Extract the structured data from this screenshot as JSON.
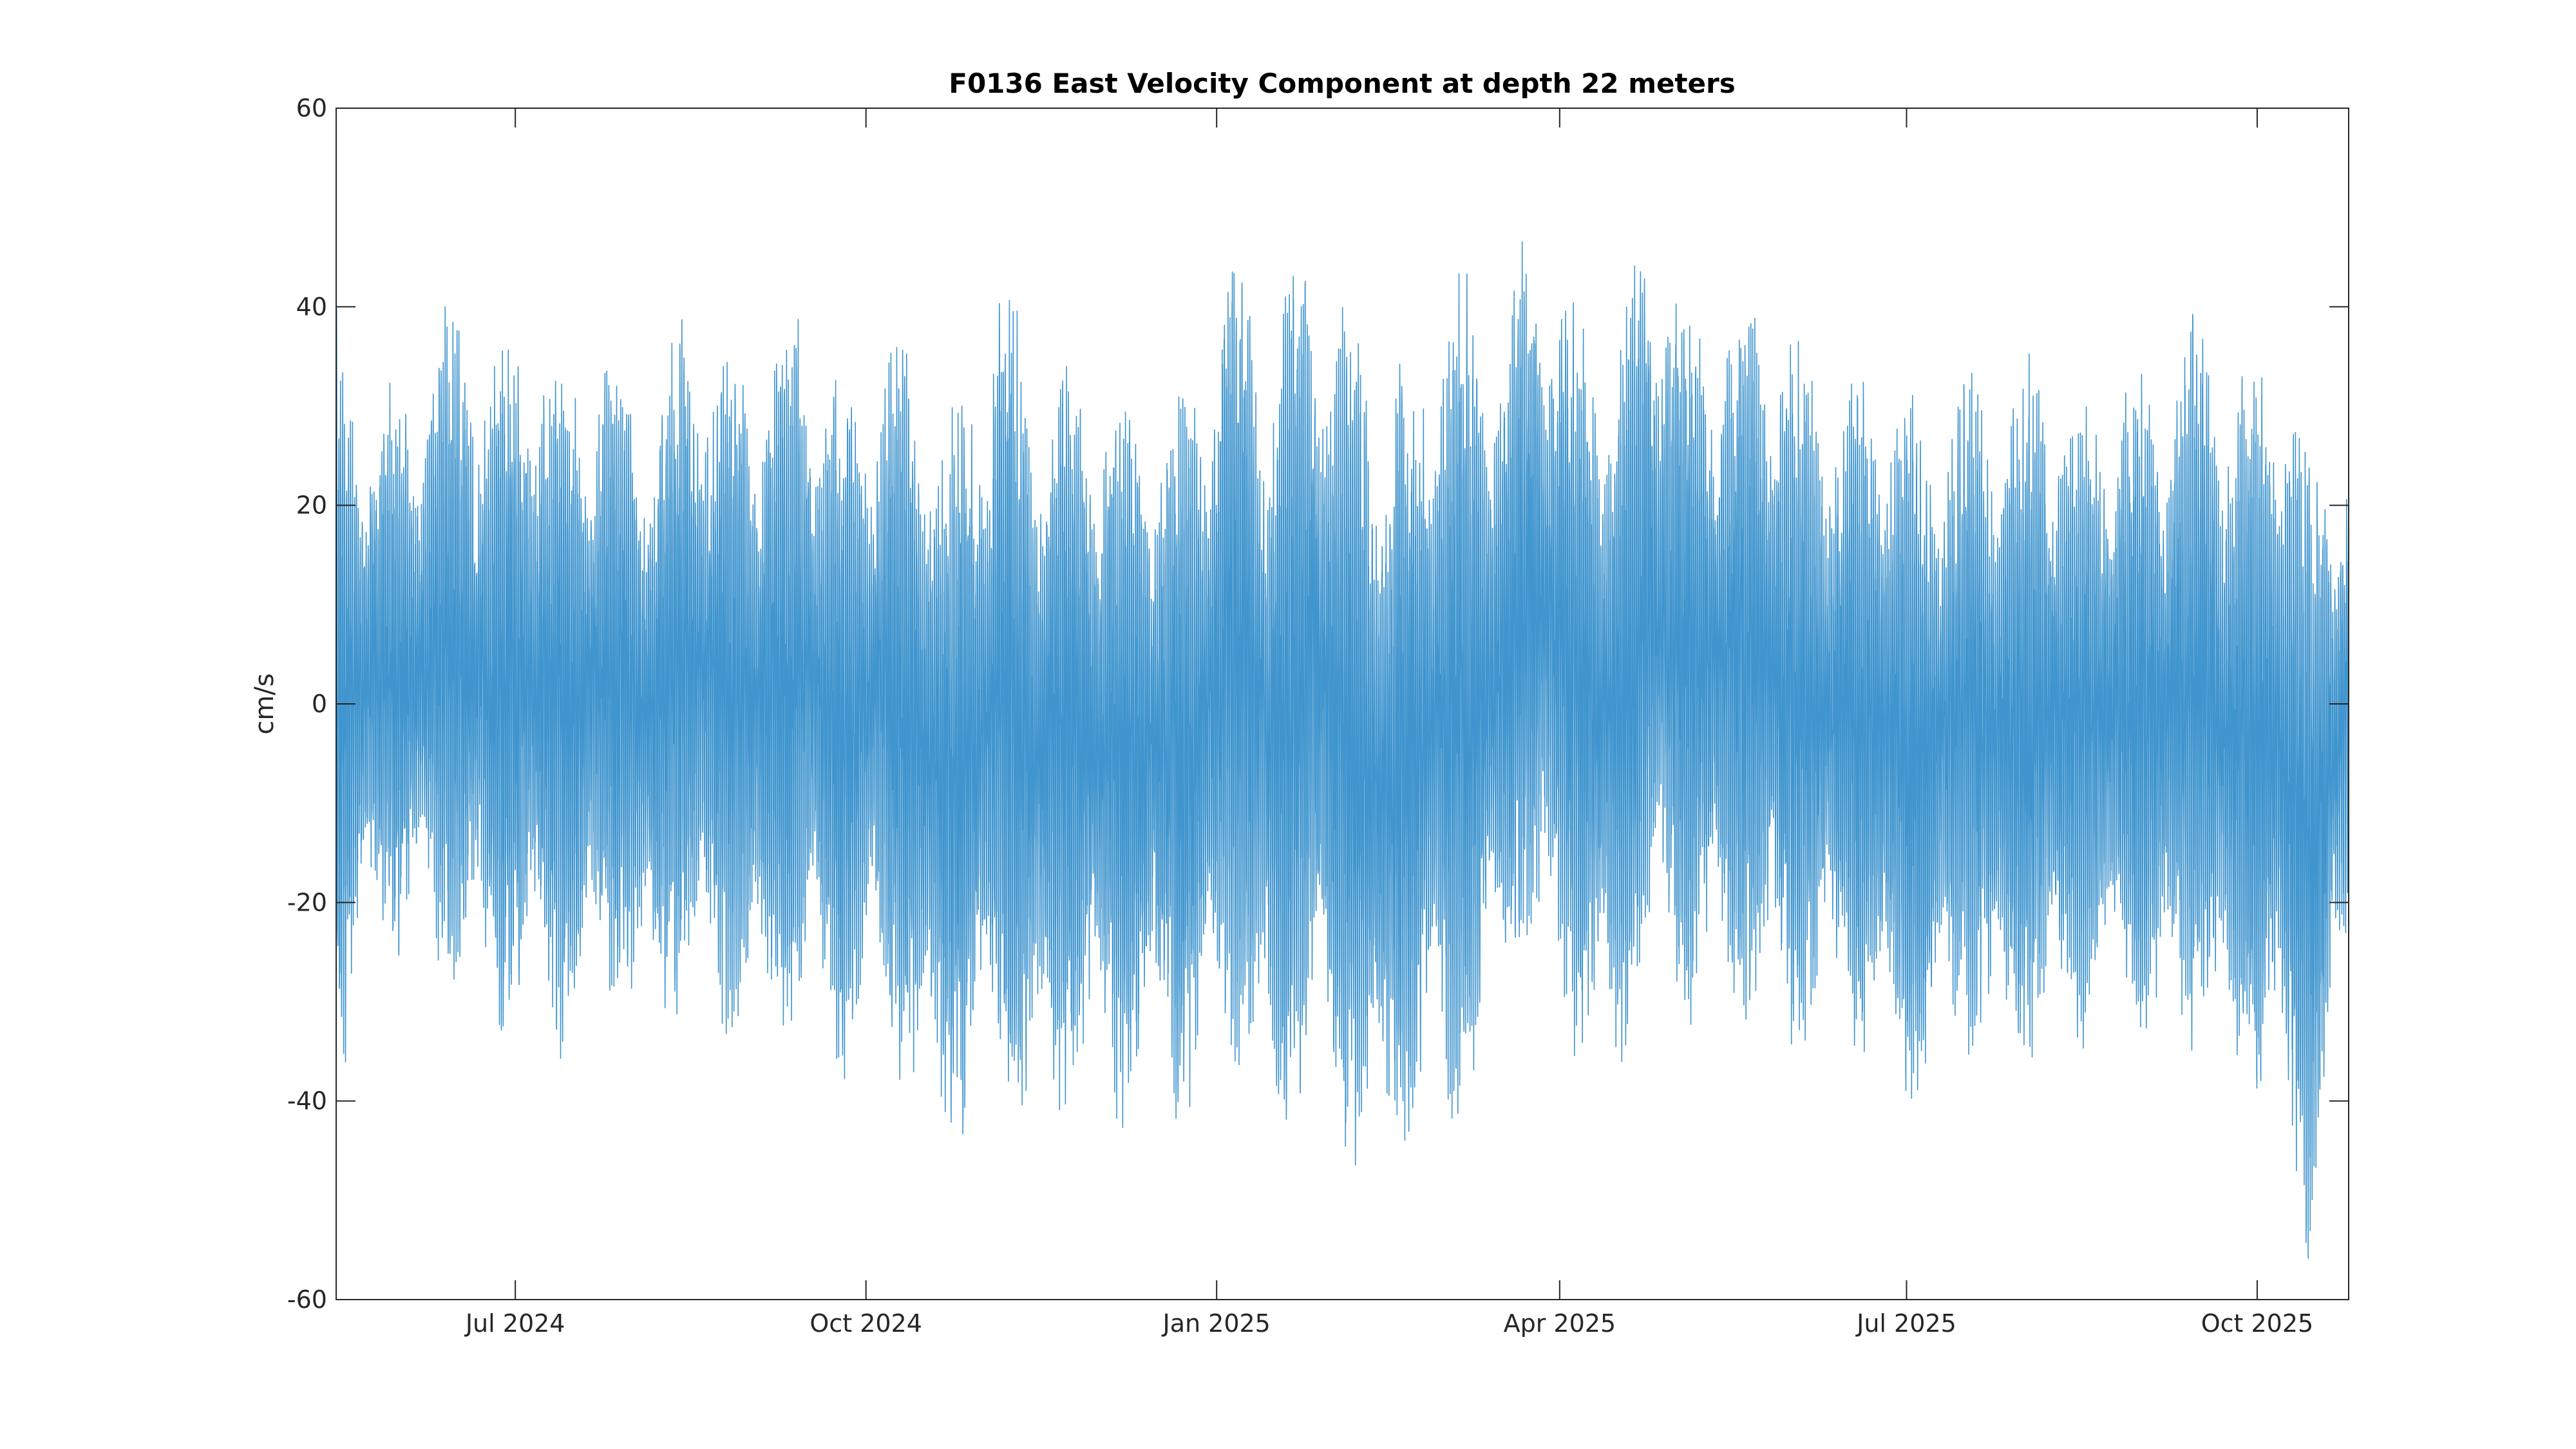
{
  "chart_data": {
    "type": "line",
    "title": "F0136 East Velocity Component at depth 22 meters",
    "xlabel": "",
    "ylabel": "cm/s",
    "x_axis_type": "date",
    "x_range": [
      "2024-05-15",
      "2025-10-25"
    ],
    "ylim": [
      -60,
      60
    ],
    "y_ticks": [
      -60,
      -40,
      -20,
      0,
      20,
      40,
      60
    ],
    "x_ticks": [
      {
        "date": "2024-07-01",
        "label": "Jul 2024"
      },
      {
        "date": "2024-10-01",
        "label": "Oct 2024"
      },
      {
        "date": "2025-01-01",
        "label": "Jan 2025"
      },
      {
        "date": "2025-04-01",
        "label": "Apr 2025"
      },
      {
        "date": "2025-07-01",
        "label": "Jul 2025"
      },
      {
        "date": "2025-10-01",
        "label": "Oct 2025"
      }
    ],
    "grid": false,
    "box": true,
    "series_color": "#0072BD",
    "sampling": "hourly, tidal oscillation",
    "series": [
      {
        "x": [
          "2024-05-15",
          "2024-05-25",
          "2024-06-05",
          "2024-06-15",
          "2024-06-25",
          "2024-07-05",
          "2024-07-15",
          "2024-07-25",
          "2024-08-05",
          "2024-08-15",
          "2024-08-25",
          "2024-09-05",
          "2024-09-15",
          "2024-09-25",
          "2024-10-05",
          "2024-10-15",
          "2024-10-25",
          "2024-11-05",
          "2024-11-15",
          "2024-11-25",
          "2024-12-05",
          "2024-12-15",
          "2024-12-25",
          "2025-01-05",
          "2025-01-15",
          "2025-01-25",
          "2025-02-05",
          "2025-02-15",
          "2025-02-25",
          "2025-03-05",
          "2025-03-15",
          "2025-03-25",
          "2025-04-05",
          "2025-04-15",
          "2025-04-25",
          "2025-05-05",
          "2025-05-15",
          "2025-05-25",
          "2025-06-05",
          "2025-06-15",
          "2025-06-25",
          "2025-07-05",
          "2025-07-15",
          "2025-07-25",
          "2025-08-05",
          "2025-08-15",
          "2025-08-25",
          "2025-09-05",
          "2025-09-15",
          "2025-09-25",
          "2025-10-05",
          "2025-10-15",
          "2025-10-25"
        ],
        "envelope_max": [
          40,
          32,
          35,
          43,
          38,
          40,
          36,
          38,
          33,
          42,
          36,
          38,
          44,
          33,
          37,
          38,
          32,
          45,
          38,
          36,
          35,
          32,
          34,
          50,
          40,
          51,
          42,
          36,
          39,
          48,
          40,
          51,
          43,
          39,
          51,
          44,
          42,
          44,
          37,
          34,
          37,
          32,
          36,
          33,
          39,
          31,
          35,
          37,
          42,
          35,
          39,
          30,
          27
        ],
        "envelope_min": [
          -43,
          -26,
          -29,
          -30,
          -36,
          -34,
          -37,
          -31,
          -35,
          -33,
          -34,
          -38,
          -36,
          -39,
          -33,
          -45,
          -47,
          -42,
          -47,
          -40,
          -45,
          -40,
          -44,
          -36,
          -48,
          -42,
          -50,
          -51,
          -42,
          -48,
          -36,
          -30,
          -36,
          -43,
          -30,
          -34,
          -33,
          -36,
          -38,
          -34,
          -42,
          -43,
          -36,
          -39,
          -40,
          -35,
          -34,
          -39,
          -36,
          -42,
          -43,
          -59,
          -26
        ]
      }
    ]
  }
}
